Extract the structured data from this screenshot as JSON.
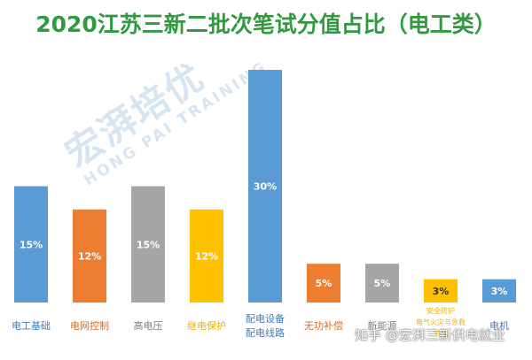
{
  "title": "2020江苏三新二批次笔试分值占比（电工类）",
  "watermark": {
    "logo_text": "宏湃培优",
    "logo_sub": "HONG PAI TRAINING",
    "zhihu": "知乎 @宏湃三新供电就业"
  },
  "chart_data": {
    "type": "bar",
    "title": "2020江苏三新二批次笔试分值占比（电工类）",
    "xlabel": "",
    "ylabel": "",
    "ylim": [
      0,
      30
    ],
    "grid": false,
    "legend": "none",
    "categories": [
      "电工基础",
      "电网控制",
      "高电压",
      "继电保护",
      "配电设备\n配电线路",
      "无功补偿",
      "新能源",
      "安全防护\n电气火灾与急救\n节能",
      "电机"
    ],
    "values": [
      15,
      12,
      15,
      12,
      30,
      5,
      5,
      3,
      3
    ],
    "data_labels": [
      "15%",
      "12%",
      "15%",
      "12%",
      "30%",
      "5%",
      "5%",
      "3%",
      "3%"
    ],
    "colors": [
      "#5b9bd5",
      "#ed7d31",
      "#a5a5a5",
      "#ffc000",
      "#5b9bd5",
      "#ed7d31",
      "#a5a5a5",
      "#ffc000",
      "#5b9bd5"
    ],
    "label_colors": [
      "#3a7cc3",
      "#e06a1e",
      "#7f7f7f",
      "#f0b000",
      "#3a7cc3",
      "#e06a1e",
      "#7f7f7f",
      "#f0b000",
      "#3a7cc3"
    ],
    "value_label_colors": [
      "#ffffff",
      "#ffffff",
      "#ffffff",
      "#ffffff",
      "#ffffff",
      "#ffffff",
      "#ffffff",
      "#333333",
      "#ffffff"
    ]
  }
}
